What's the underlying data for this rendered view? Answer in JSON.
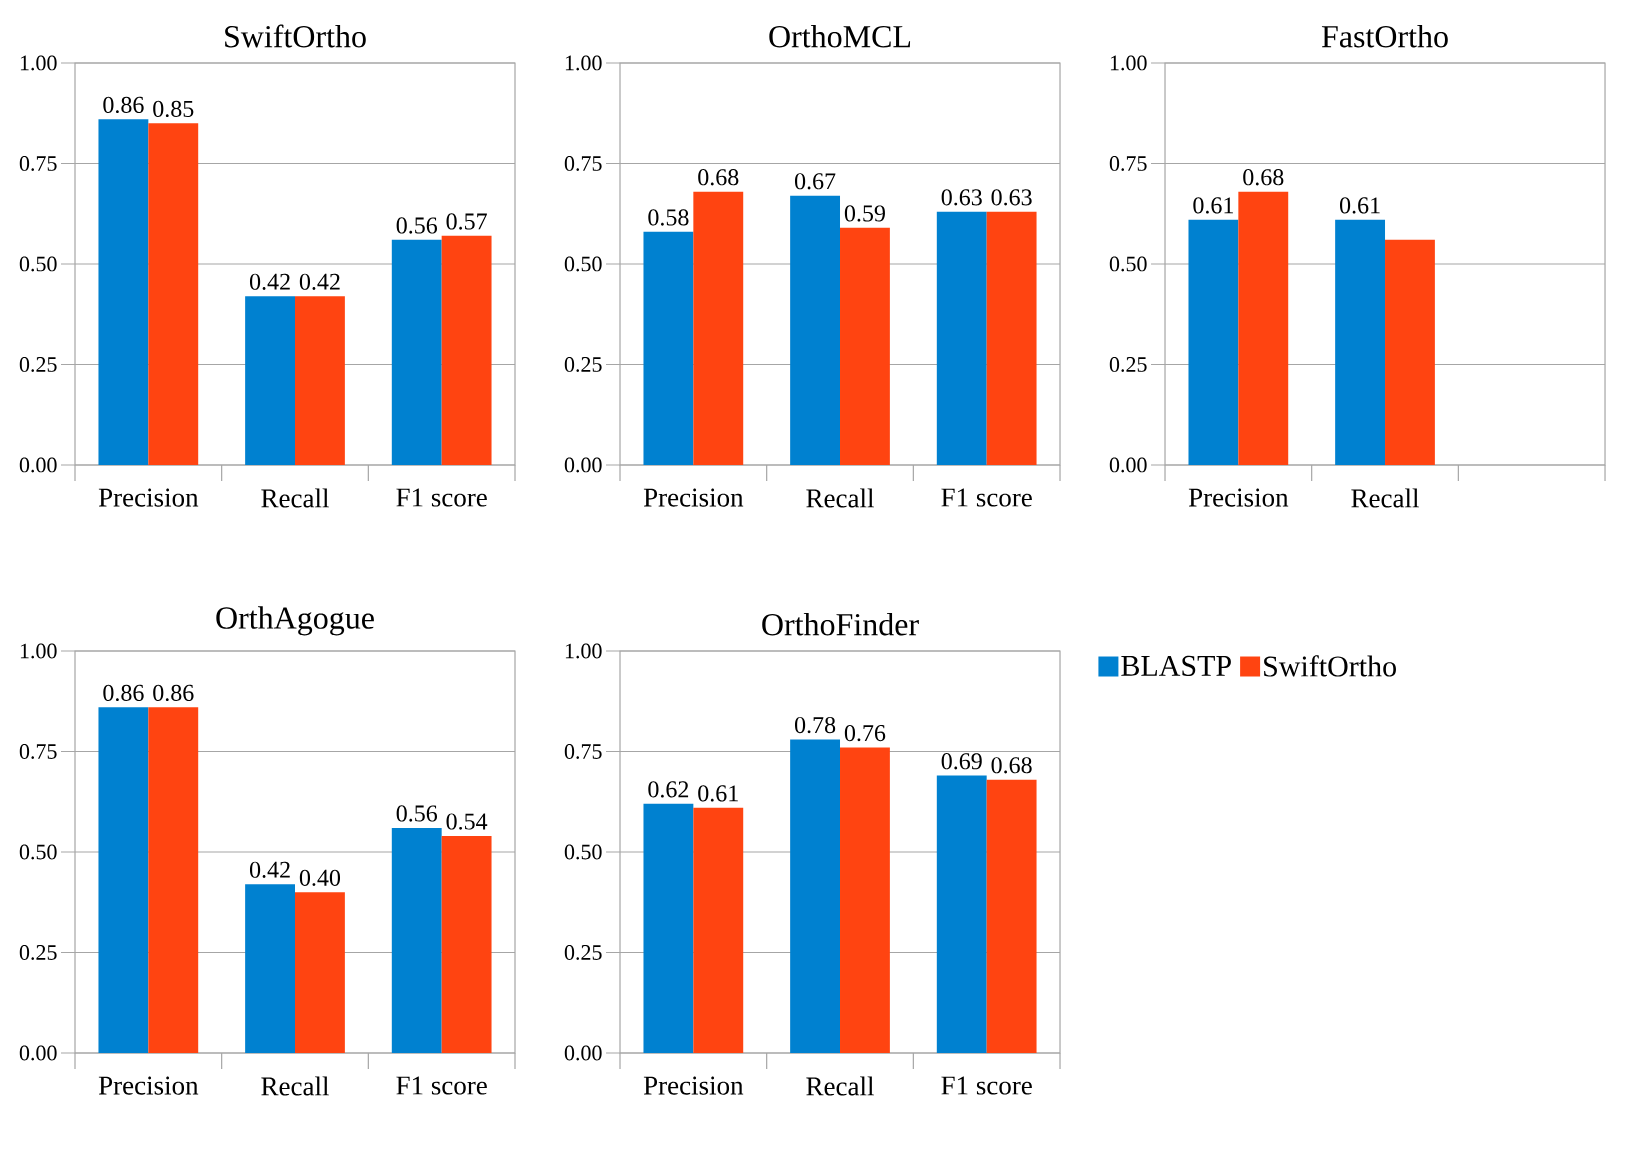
{
  "chart_data": [
    {
      "type": "bar",
      "title": "SwiftOrtho",
      "categories": [
        "Precision",
        "Recall",
        "F1 score"
      ],
      "ylim": [
        0,
        1
      ],
      "yticks": [
        {
          "value": 0,
          "label": "0.00"
        },
        {
          "value": 0.25,
          "label": "0.25"
        },
        {
          "value": 0.5,
          "label": "0.50"
        },
        {
          "value": 0.75,
          "label": "0.75"
        },
        {
          "value": 1,
          "label": "1.00"
        }
      ],
      "grid": "y",
      "series": [
        {
          "color": "#0081d0",
          "values": [
            0.86,
            0.42,
            0.56
          ],
          "value_labels": [
            "0.86",
            "0.42",
            "0.56"
          ]
        },
        {
          "color": "#ff4411",
          "values": [
            0.85,
            0.42,
            0.57
          ],
          "value_labels": [
            "0.85",
            "0.42",
            "0.57"
          ]
        }
      ]
    },
    {
      "type": "bar",
      "title": "OrthoMCL",
      "categories": [
        "Precision",
        "Recall",
        "F1 score"
      ],
      "ylim": [
        0,
        1
      ],
      "yticks": [
        {
          "value": 0,
          "label": "0.00"
        },
        {
          "value": 0.25,
          "label": "0.25"
        },
        {
          "value": 0.5,
          "label": "0.50"
        },
        {
          "value": 0.75,
          "label": "0.75"
        },
        {
          "value": 1,
          "label": "1.00"
        }
      ],
      "grid": "y",
      "series": [
        {
          "color": "#0081d0",
          "values": [
            0.58,
            0.67,
            0.63
          ],
          "value_labels": [
            "0.58",
            "0.67",
            "0.63"
          ]
        },
        {
          "color": "#ff4411",
          "values": [
            0.68,
            0.59,
            0.63
          ],
          "value_labels": [
            "0.68",
            "0.59",
            "0.63"
          ]
        }
      ]
    },
    {
      "type": "bar",
      "title": "FastOrtho",
      "categories": [
        "Precision",
        "Recall",
        null
      ],
      "ylim": [
        0,
        1
      ],
      "yticks": [
        {
          "value": 0,
          "label": "0.00"
        },
        {
          "value": 0.25,
          "label": "0.25"
        },
        {
          "value": 0.5,
          "label": "0.50"
        },
        {
          "value": 0.75,
          "label": "0.75"
        },
        {
          "value": 1,
          "label": "1.00"
        }
      ],
      "grid": "y",
      "series": [
        {
          "color": "#0081d0",
          "values": [
            0.61,
            0.61,
            null
          ],
          "value_labels": [
            "0.61",
            "0.61",
            null
          ]
        },
        {
          "color": "#ff4411",
          "values": [
            0.68,
            0.56,
            null
          ],
          "value_labels": [
            "0.68",
            null,
            null
          ]
        }
      ]
    },
    {
      "type": "bar",
      "title": "OrthAgogue",
      "categories": [
        "Precision",
        "Recall",
        "F1 score"
      ],
      "ylim": [
        0,
        1
      ],
      "yticks": [
        {
          "value": 0,
          "label": "0.00"
        },
        {
          "value": 0.25,
          "label": "0.25"
        },
        {
          "value": 0.5,
          "label": "0.50"
        },
        {
          "value": 0.75,
          "label": "0.75"
        },
        {
          "value": 1,
          "label": "1.00"
        }
      ],
      "grid": "y",
      "series": [
        {
          "color": "#0081d0",
          "values": [
            0.86,
            0.42,
            0.56
          ],
          "value_labels": [
            "0.86",
            "0.42",
            "0.56"
          ]
        },
        {
          "color": "#ff4411",
          "values": [
            0.86,
            0.4,
            0.54
          ],
          "value_labels": [
            "0.86",
            "0.40",
            "0.54"
          ]
        }
      ]
    },
    {
      "type": "bar",
      "title": "OrthoFinder",
      "categories": [
        "Precision",
        "Recall",
        "F1 score"
      ],
      "ylim": [
        0,
        1
      ],
      "yticks": [
        {
          "value": 0,
          "label": "0.00"
        },
        {
          "value": 0.25,
          "label": "0.25"
        },
        {
          "value": 0.5,
          "label": "0.50"
        },
        {
          "value": 0.75,
          "label": "0.75"
        },
        {
          "value": 1,
          "label": "1.00"
        }
      ],
      "grid": "y",
      "legend": "right",
      "series": [
        {
          "name": "BLASTP",
          "color": "#0081d0",
          "values": [
            0.62,
            0.78,
            0.69
          ],
          "value_labels": [
            "0.62",
            "0.78",
            "0.69"
          ]
        },
        {
          "name": "SwiftOrtho",
          "color": "#ff4411",
          "values": [
            0.61,
            0.76,
            0.68
          ],
          "value_labels": [
            "0.61",
            "0.76",
            "0.68"
          ]
        }
      ]
    }
  ]
}
